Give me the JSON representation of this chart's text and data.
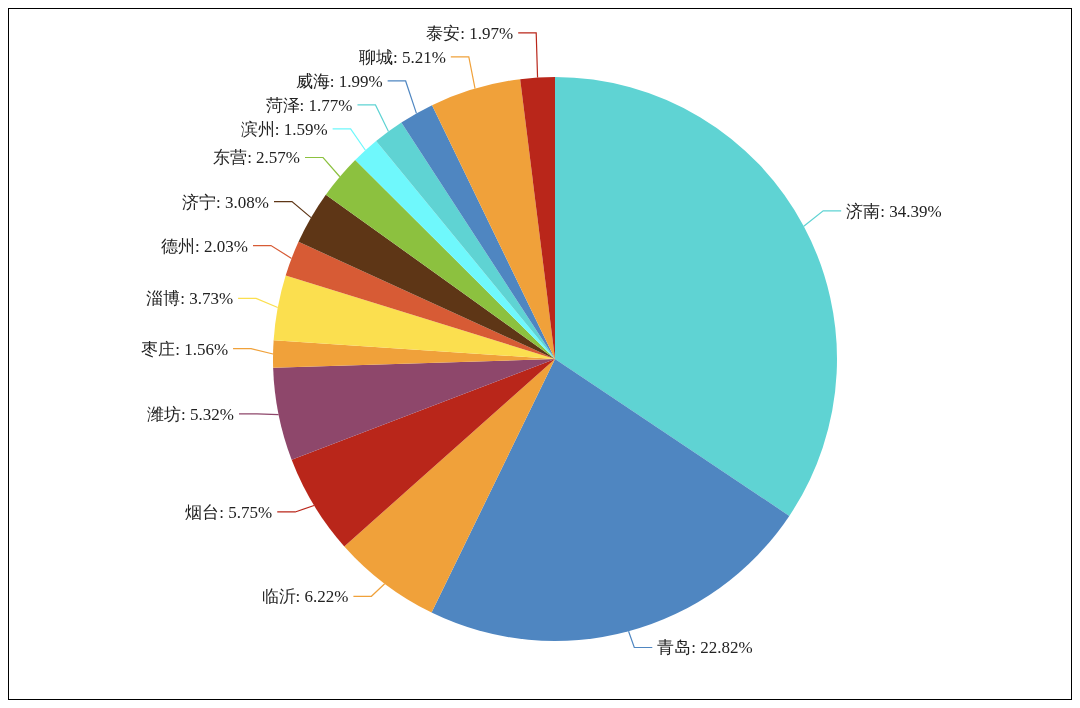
{
  "chart_data": {
    "type": "pie",
    "categories": [
      "济南",
      "青岛",
      "临沂",
      "烟台",
      "潍坊",
      "枣庄",
      "淄博",
      "德州",
      "济宁",
      "东营",
      "滨州",
      "菏泽",
      "威海",
      "聊城",
      "泰安"
    ],
    "values": [
      34.39,
      22.82,
      6.22,
      5.75,
      5.32,
      1.56,
      3.73,
      2.03,
      3.08,
      2.57,
      1.59,
      1.77,
      1.99,
      5.21,
      1.97
    ],
    "value_labels": [
      "34.39%",
      "22.82%",
      "6.22%",
      "5.75%",
      "5.32%",
      "1.56%",
      "3.73%",
      "2.03%",
      "3.08%",
      "2.57%",
      "1.59%",
      "1.77%",
      "1.99%",
      "5.21%",
      "1.97%"
    ],
    "colors": [
      "#5fd3d3",
      "#4f86c1",
      "#f0a13a",
      "#b9261a",
      "#8e476b",
      "#f0a13a",
      "#fbdf4f",
      "#d75b35",
      "#5e3616",
      "#8cc13f",
      "#6ff8fc",
      "#5fd3d3",
      "#4f86c1",
      "#f0a13a",
      "#b9261a"
    ]
  }
}
